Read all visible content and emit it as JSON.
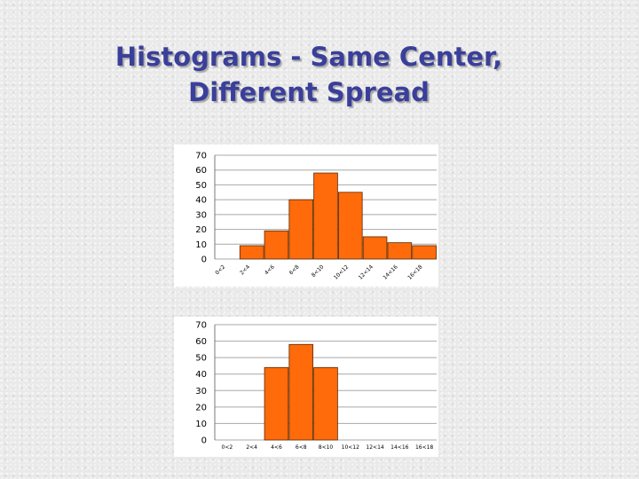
{
  "slide": {
    "title_line1": "Histograms - Same Center,",
    "title_line2": "Different Spread"
  },
  "colors": {
    "title": "#3a3f9a",
    "bar_fill": "#ff6a0a",
    "bar_stroke": "#5a2a00",
    "gridline": "#a8a8a8"
  },
  "chart_data": [
    {
      "type": "bar",
      "categories": [
        "0<2",
        "2<4",
        "4<6",
        "6<8",
        "8<10",
        "10<12",
        "12<14",
        "14<16",
        "16<18"
      ],
      "values": [
        0,
        9,
        19,
        40,
        58,
        45,
        15,
        11,
        9
      ],
      "ylim": [
        0,
        70
      ],
      "yticks": [
        0,
        10,
        20,
        30,
        40,
        50,
        60,
        70
      ],
      "grid": true,
      "xtick_rotation": "rotated"
    },
    {
      "type": "bar",
      "categories": [
        "0<2",
        "2<4",
        "4<6",
        "6<8",
        "8<10",
        "10<12",
        "12<14",
        "14<16",
        "16<18"
      ],
      "values": [
        0,
        0,
        44,
        58,
        44,
        0,
        0,
        0,
        0
      ],
      "ylim": [
        0,
        70
      ],
      "yticks": [
        0,
        10,
        20,
        30,
        40,
        50,
        60,
        70
      ],
      "grid": true,
      "xtick_rotation": "horizontal"
    }
  ]
}
